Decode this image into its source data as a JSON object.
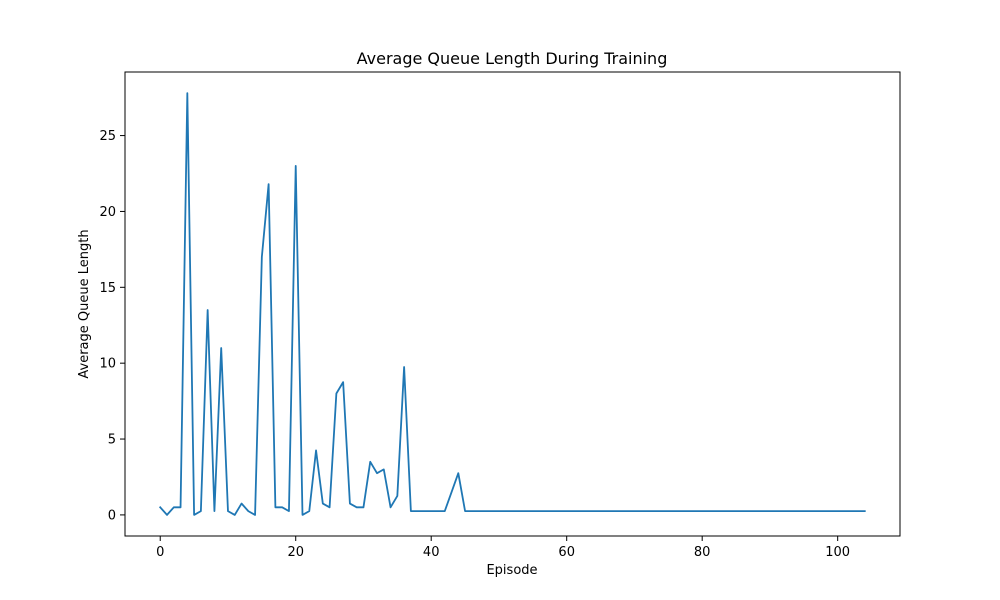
{
  "chart_data": {
    "type": "line",
    "title": "Average Queue Length During Training",
    "xlabel": "Episode",
    "ylabel": "Average Queue Length",
    "xlim": [
      -5.2,
      109.2
    ],
    "ylim": [
      -1.39,
      29.19
    ],
    "x_ticks": [
      0,
      20,
      40,
      60,
      80,
      100
    ],
    "y_ticks": [
      0,
      5,
      10,
      15,
      20,
      25
    ],
    "grid": false,
    "line_color": "#1f77b4",
    "series": [
      {
        "x": [
          0,
          1,
          2,
          3,
          4,
          5,
          6,
          7,
          8,
          9,
          10,
          11,
          12,
          13,
          14,
          15,
          16,
          17,
          18,
          19,
          20,
          21,
          22,
          23,
          24,
          25,
          26,
          27,
          28,
          29,
          30,
          31,
          32,
          33,
          34,
          35,
          36,
          37,
          38,
          39,
          40,
          41,
          42,
          43,
          44,
          45,
          46,
          47,
          48,
          49,
          50,
          51,
          52,
          53,
          54,
          55,
          56,
          57,
          58,
          59,
          60,
          61,
          62,
          63,
          64,
          65,
          66,
          67,
          68,
          69,
          70,
          71,
          72,
          73,
          74,
          75,
          76,
          77,
          78,
          79,
          80,
          81,
          82,
          83,
          84,
          85,
          86,
          87,
          88,
          89,
          90,
          91,
          92,
          93,
          94,
          95,
          96,
          97,
          98,
          99,
          100,
          101,
          102,
          103,
          104
        ],
        "values": [
          0.5,
          0.0,
          0.5,
          0.5,
          27.8,
          0.0,
          0.25,
          13.5,
          0.25,
          11.0,
          0.25,
          0.0,
          0.75,
          0.25,
          0.0,
          17.0,
          21.8,
          0.5,
          0.5,
          0.25,
          23.0,
          0.0,
          0.25,
          4.25,
          0.75,
          0.5,
          8.0,
          8.75,
          0.75,
          0.5,
          0.5,
          3.5,
          2.75,
          3.0,
          0.5,
          1.25,
          9.75,
          0.25,
          0.25,
          0.25,
          0.25,
          0.25,
          0.25,
          1.5,
          2.75,
          0.25,
          0.25,
          0.25,
          0.25,
          0.25,
          0.25,
          0.25,
          0.25,
          0.25,
          0.25,
          0.25,
          0.25,
          0.25,
          0.25,
          0.25,
          0.25,
          0.25,
          0.25,
          0.25,
          0.25,
          0.25,
          0.25,
          0.25,
          0.25,
          0.25,
          0.25,
          0.25,
          0.25,
          0.25,
          0.25,
          0.25,
          0.25,
          0.25,
          0.25,
          0.25,
          0.25,
          0.25,
          0.25,
          0.25,
          0.25,
          0.25,
          0.25,
          0.25,
          0.25,
          0.25,
          0.25,
          0.25,
          0.25,
          0.25,
          0.25,
          0.25,
          0.25,
          0.25,
          0.25,
          0.25,
          0.25,
          0.25,
          0.25,
          0.25,
          0.25
        ]
      }
    ]
  }
}
